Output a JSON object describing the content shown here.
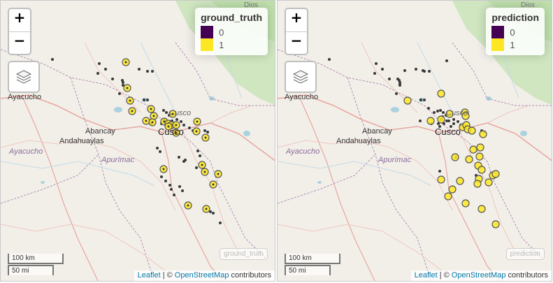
{
  "colors": {
    "class0": "#440154",
    "class1": "#fde725",
    "point_edge": "#555555",
    "point_dark": "#3a3a3a"
  },
  "map": {
    "places": {
      "ayacucho_city": "Ayacucho",
      "abancay": "Abancay",
      "andahuaylas": "Andahuaylas",
      "cusco": "Cusco",
      "cusco_region": "Cusco",
      "ayacucho_region": "Ayacucho",
      "apurimac": "Apurímac",
      "dios": "Dios"
    },
    "zoom_in": "+",
    "zoom_out": "−",
    "layers_icon": "layers-icon",
    "scale": {
      "km": "100 km",
      "mi": "50 mi"
    },
    "attribution": {
      "leaflet": "Leaflet",
      "sep": "| ©",
      "osm": "OpenStreetMap",
      "rest": "contributors"
    }
  },
  "panels": [
    {
      "title": "ground_truth",
      "legend": [
        {
          "label": "0"
        },
        {
          "label": "1"
        }
      ],
      "minimap_label": "ground_truth"
    },
    {
      "title": "prediction",
      "legend": [
        {
          "label": "0"
        },
        {
          "label": "1"
        }
      ],
      "minimap_label": "prediction"
    }
  ]
}
